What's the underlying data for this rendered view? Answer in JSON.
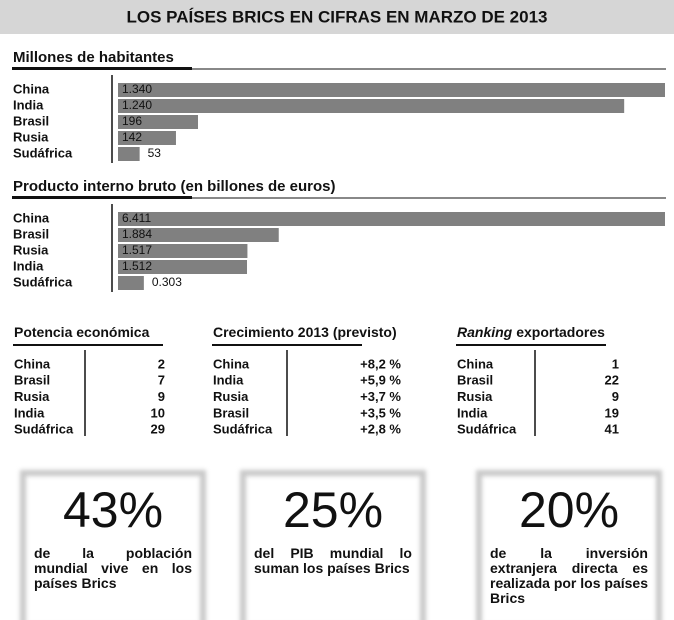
{
  "title": "LOS PAÍSES BRICS EN CIFRAS EN MARZO DE 2013",
  "chart_data": [
    {
      "type": "bar",
      "title": "Millones de habitantes",
      "categories": [
        "China",
        "India",
        "Brasil",
        "Rusia",
        "Sudáfrica"
      ],
      "values": [
        1340,
        1240,
        196,
        142,
        53
      ],
      "value_labels": [
        "1.340",
        "1.240",
        "196",
        "142",
        "53"
      ],
      "color": "#808080"
    },
    {
      "type": "bar",
      "title": "Producto interno bruto (en billones de euros)",
      "categories": [
        "China",
        "Brasil",
        "Rusia",
        "India",
        "Sudáfrica"
      ],
      "values": [
        6.411,
        1.884,
        1.517,
        1.512,
        0.303
      ],
      "color": "#808080"
    }
  ],
  "tables": [
    {
      "title": "Potencia económica",
      "rows": [
        [
          "China",
          2
        ],
        [
          "Brasil",
          7
        ],
        [
          "Rusia",
          9
        ],
        [
          "India",
          10
        ],
        [
          "Sudáfrica",
          29
        ]
      ]
    },
    {
      "title": "Crecimiento 2013 (previsto)",
      "rows": [
        [
          "China",
          "+8,2 %"
        ],
        [
          "India",
          "+5,9 %"
        ],
        [
          "Rusia",
          "+3,7 %"
        ],
        [
          "Brasil",
          "+3,5 %"
        ],
        [
          "Sudáfrica",
          "+2,8 %"
        ]
      ]
    },
    {
      "title_em": "Ranking",
      "title": "exportadores",
      "rows": [
        [
          "China",
          1
        ],
        [
          "Brasil",
          22
        ],
        [
          "Rusia",
          9
        ],
        [
          "India",
          19
        ],
        [
          "Sudáfrica",
          41
        ]
      ]
    }
  ],
  "stats": [
    {
      "value": "43%",
      "text": "de la población mundial vive en los países Brics"
    },
    {
      "value": "25%",
      "text": "del PIB mundial lo suman los países Brics"
    },
    {
      "value": "20%",
      "text": "de la inversión extranjera directa es realizada por los países Brics"
    }
  ]
}
